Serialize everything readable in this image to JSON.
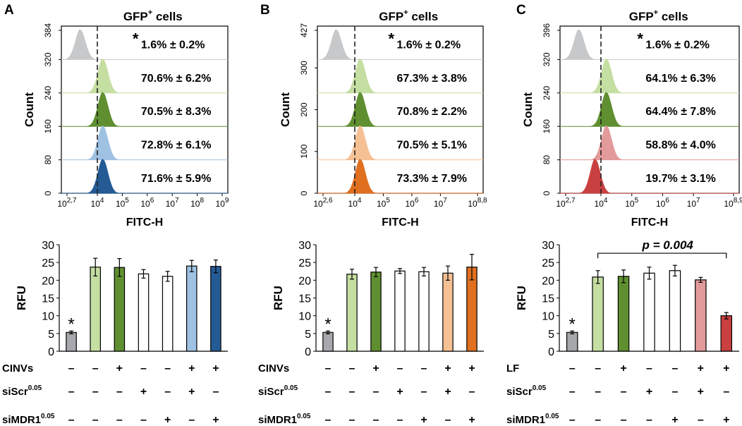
{
  "chart_data": [
    {
      "type": "histogram_overlay",
      "panel": "A",
      "title": "GFP",
      "title_sup": "+",
      "title_suffix": "cells",
      "ylabel": "Count",
      "yticks": [
        "384",
        "320",
        "240",
        "160",
        "80",
        "0"
      ],
      "xlabel": "FITC-H",
      "xticks": [
        {
          "base": "10",
          "exp": "2,7"
        },
        {
          "base": "10",
          "exp": "4"
        },
        {
          "base": "10",
          "exp": "5"
        },
        {
          "base": "10",
          "exp": "6"
        },
        {
          "base": "10",
          "exp": "7"
        },
        {
          "base": "10",
          "exp": "8"
        },
        {
          "base": "10",
          "exp": "9"
        }
      ],
      "traces": [
        {
          "color": "#c7c8ca",
          "peak": "left",
          "label": "1.6% ± 0.2%",
          "star": true
        },
        {
          "color": "#c5dea1",
          "peak": "gate",
          "label": "70.6% ± 6.2%",
          "star": false
        },
        {
          "color": "#5f8f30",
          "peak": "gate",
          "label": "70.5% ± 8.3%",
          "star": false
        },
        {
          "color": "#9fc2e2",
          "peak": "gate",
          "label": "72.8% ± 6.1%",
          "star": false
        },
        {
          "color": "#245b95",
          "peak": "gate",
          "label": "71.6% ± 5.9%",
          "star": false
        }
      ]
    },
    {
      "type": "histogram_overlay",
      "panel": "B",
      "title": "GFP",
      "title_sup": "+",
      "title_suffix": "cells",
      "ylabel": "Count",
      "yticks": [
        "427",
        "300",
        "200",
        "100",
        "0"
      ],
      "xlabel": "FITC-H",
      "xticks": [
        {
          "base": "10",
          "exp": "2,6"
        },
        {
          "base": "10",
          "exp": "4"
        },
        {
          "base": "10",
          "exp": "5"
        },
        {
          "base": "10",
          "exp": "6"
        },
        {
          "base": "10",
          "exp": "7"
        },
        {
          "base": "10",
          "exp": "8,8"
        }
      ],
      "traces": [
        {
          "color": "#c7c8ca",
          "peak": "left",
          "label": "1.6% ± 0.2%",
          "star": true
        },
        {
          "color": "#c5dea1",
          "peak": "gate",
          "label": "67.3% ± 3.8%",
          "star": false
        },
        {
          "color": "#5f8f30",
          "peak": "gate",
          "label": "70.8% ± 2.2%",
          "star": false
        },
        {
          "color": "#f5c094",
          "peak": "gate",
          "label": "70.5% ± 5.1%",
          "star": false
        },
        {
          "color": "#e07020",
          "peak": "gate",
          "label": "73.3% ± 7.9%",
          "star": false
        }
      ]
    },
    {
      "type": "histogram_overlay",
      "panel": "C",
      "title": "GFP",
      "title_sup": "+",
      "title_suffix": "cells",
      "ylabel": "Count",
      "yticks": [
        "396",
        "320",
        "240",
        "160",
        "80",
        "0"
      ],
      "xlabel": "FITC-H",
      "xticks": [
        {
          "base": "10",
          "exp": "2,7"
        },
        {
          "base": "10",
          "exp": "4"
        },
        {
          "base": "10",
          "exp": "5"
        },
        {
          "base": "10",
          "exp": "6"
        },
        {
          "base": "10",
          "exp": "7"
        },
        {
          "base": "10",
          "exp": "8,9"
        }
      ],
      "traces": [
        {
          "color": "#c7c8ca",
          "peak": "left",
          "label": "1.6% ± 0.2%",
          "star": true
        },
        {
          "color": "#c5dea1",
          "peak": "gate",
          "label": "64.1% ± 6.3%",
          "star": false
        },
        {
          "color": "#5f8f30",
          "peak": "gate",
          "label": "64.4% ± 7.8%",
          "star": false
        },
        {
          "color": "#e39a9a",
          "peak": "gate",
          "label": "58.8% ± 4.0%",
          "star": false
        },
        {
          "color": "#c94040",
          "peak": "shifted",
          "label": "19.7% ± 3.1%",
          "star": false
        }
      ]
    },
    {
      "type": "bar",
      "panel": "A",
      "ylabel": "RFU",
      "ylim": [
        0,
        30
      ],
      "yticks": [
        "0",
        "5",
        "10",
        "15",
        "20",
        "25",
        "30"
      ],
      "values": [
        5.3,
        23.7,
        23.6,
        21.8,
        21.1,
        24.0,
        23.9
      ],
      "errors": [
        0.4,
        2.5,
        2.5,
        1.2,
        1.4,
        1.6,
        1.8
      ],
      "colors": [
        "#a6a8ab",
        "#c5dea1",
        "#5f8f30",
        "#ffffff",
        "#ffffff",
        "#9fc2e2",
        "#245b95"
      ],
      "star_bar": "*",
      "bracket": null,
      "conditions": [
        {
          "label": "CINVs",
          "sup": "",
          "marks": [
            "–",
            "–",
            "+",
            "–",
            "–",
            "+",
            "+"
          ]
        },
        {
          "label": "siScr",
          "sup": "0.05",
          "marks": [
            "–",
            "–",
            "–",
            "+",
            "–",
            "+",
            "–"
          ]
        },
        {
          "label": "siMDR1",
          "sup": "0.05",
          "marks": [
            "–",
            "–",
            "–",
            "–",
            "+",
            "–",
            "+"
          ]
        }
      ]
    },
    {
      "type": "bar",
      "panel": "B",
      "ylabel": "RFU",
      "ylim": [
        0,
        30
      ],
      "yticks": [
        "0",
        "5",
        "10",
        "15",
        "20",
        "25",
        "30"
      ],
      "values": [
        5.3,
        21.7,
        22.3,
        22.6,
        22.4,
        22.0,
        23.7
      ],
      "errors": [
        0.4,
        1.4,
        1.3,
        0.7,
        1.2,
        2.0,
        3.6
      ],
      "colors": [
        "#a6a8ab",
        "#c5dea1",
        "#5f8f30",
        "#ffffff",
        "#ffffff",
        "#f5c094",
        "#e07020"
      ],
      "star_bar": "*",
      "bracket": null,
      "conditions": [
        {
          "label": "CINVs",
          "sup": "",
          "marks": [
            "–",
            "–",
            "+",
            "–",
            "–",
            "+",
            "+"
          ]
        },
        {
          "label": "siScr",
          "sup": "0.05",
          "marks": [
            "–",
            "–",
            "–",
            "+",
            "–",
            "+",
            "–"
          ]
        },
        {
          "label": "siMDR1",
          "sup": "0.05",
          "marks": [
            "–",
            "–",
            "–",
            "–",
            "+",
            "–",
            "+"
          ]
        }
      ]
    },
    {
      "type": "bar",
      "panel": "C",
      "ylabel": "RFU",
      "ylim": [
        0,
        30
      ],
      "yticks": [
        "0",
        "5",
        "10",
        "15",
        "20",
        "25",
        "30"
      ],
      "values": [
        5.3,
        20.9,
        21.1,
        22.0,
        22.7,
        20.1,
        10.0
      ],
      "errors": [
        0.4,
        1.8,
        1.8,
        1.7,
        1.5,
        0.7,
        0.9
      ],
      "colors": [
        "#a6a8ab",
        "#c5dea1",
        "#5f8f30",
        "#ffffff",
        "#ffffff",
        "#e39a9a",
        "#c94040"
      ],
      "star_bar": "*",
      "bracket": {
        "from": 1,
        "to": 6,
        "label": "p = 0.004"
      },
      "conditions": [
        {
          "label": "LF",
          "sup": "",
          "marks": [
            "–",
            "–",
            "+",
            "–",
            "–",
            "+",
            "+"
          ]
        },
        {
          "label": "siScr",
          "sup": "0.05",
          "marks": [
            "–",
            "–",
            "–",
            "+",
            "–",
            "+",
            "–"
          ]
        },
        {
          "label": "siMDR1",
          "sup": "0.05",
          "marks": [
            "–",
            "–",
            "–",
            "–",
            "+",
            "–",
            "+"
          ]
        }
      ]
    }
  ]
}
